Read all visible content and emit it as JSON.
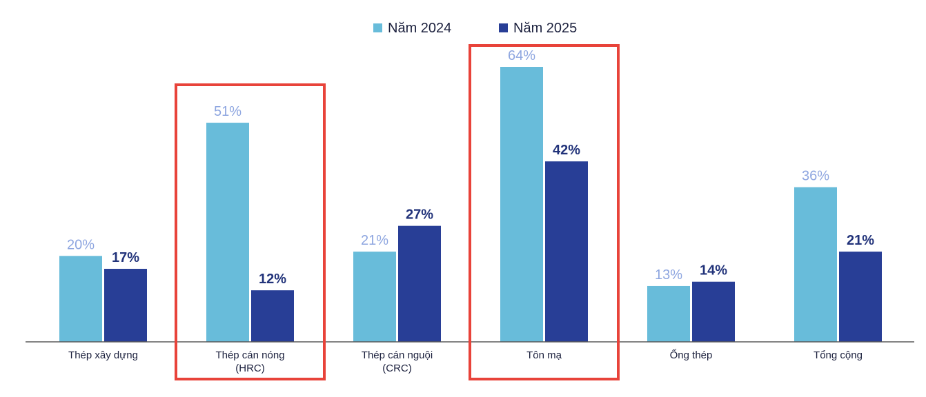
{
  "chart_data": {
    "type": "bar",
    "categories": [
      [
        "Thép xây dựng"
      ],
      [
        "Thép cán nóng",
        "(HRC)"
      ],
      [
        "Thép cán nguội",
        "(CRC)"
      ],
      [
        "Tôn mạ"
      ],
      [
        "Ống thép"
      ],
      [
        "Tổng cộng"
      ]
    ],
    "series": [
      {
        "name": "Năm 2024",
        "color": "#68bcda",
        "label_color": "#8ea6e0",
        "values": [
          20,
          51,
          21,
          64,
          13,
          36
        ],
        "labels": [
          "20%",
          "51%",
          "21%",
          "64%",
          "13%",
          "36%"
        ]
      },
      {
        "name": "Năm 2025",
        "color": "#283e96",
        "label_color": "#22337a",
        "values": [
          17,
          12,
          27,
          42,
          14,
          21
        ],
        "labels": [
          "17%",
          "12%",
          "27%",
          "42%",
          "14%",
          "21%"
        ]
      }
    ],
    "ylim": [
      0,
      64
    ],
    "highlighted_categories": [
      1,
      3
    ],
    "highlight_color": "#e8433a",
    "legend_position": "top-center",
    "grid": false,
    "title": "",
    "xlabel": "",
    "ylabel": ""
  }
}
